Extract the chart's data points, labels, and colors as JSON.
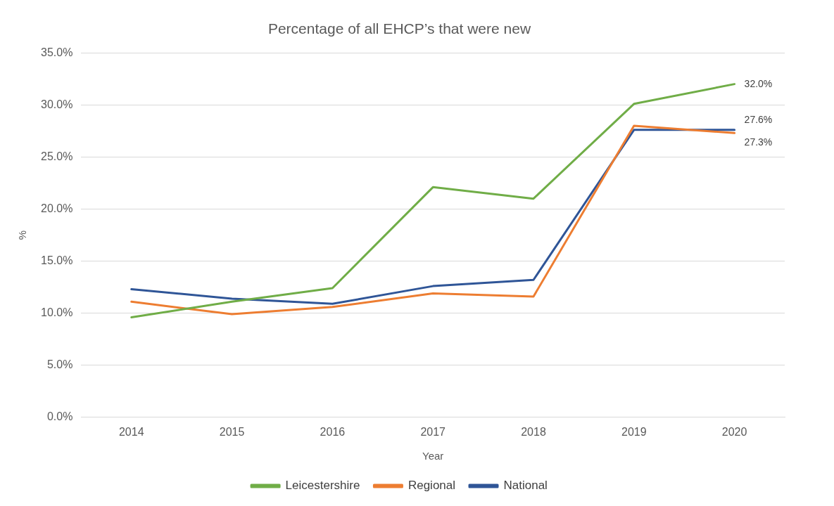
{
  "chart_data": {
    "type": "line",
    "title": "Percentage of all EHCP’s that were new",
    "xlabel": "Year",
    "ylabel": "%",
    "categories": [
      "2014",
      "2015",
      "2016",
      "2017",
      "2018",
      "2019",
      "2020"
    ],
    "series": [
      {
        "name": "Leicestershire",
        "color": "#70ad47",
        "values": [
          9.6,
          11.1,
          12.4,
          22.1,
          21.0,
          30.1,
          32.0
        ],
        "value_labels": [
          null,
          null,
          null,
          null,
          null,
          null,
          "32.0%"
        ]
      },
      {
        "name": "Regional",
        "color": "#ed7d31",
        "values": [
          11.1,
          9.9,
          10.6,
          11.9,
          11.6,
          28.0,
          27.3
        ],
        "value_labels": [
          null,
          null,
          null,
          null,
          null,
          null,
          "27.3%"
        ]
      },
      {
        "name": "National",
        "color": "#2f5597",
        "values": [
          12.3,
          11.4,
          10.9,
          12.6,
          13.2,
          27.6,
          27.6
        ],
        "value_labels": [
          null,
          null,
          null,
          null,
          null,
          null,
          "27.6%"
        ]
      }
    ],
    "ylim": [
      0,
      35
    ],
    "yticks": [
      {
        "value": 0,
        "label": "0.0%"
      },
      {
        "value": 5,
        "label": "5.0%"
      },
      {
        "value": 10,
        "label": "10.0%"
      },
      {
        "value": 15,
        "label": "15.0%"
      },
      {
        "value": 20,
        "label": "20.0%"
      },
      {
        "value": 25,
        "label": "25.0%"
      },
      {
        "value": 30,
        "label": "30.0%"
      },
      {
        "value": 35,
        "label": "35.0%"
      }
    ],
    "grid": "y",
    "legend": "bottom",
    "marker": "none",
    "line_style": "solid"
  }
}
